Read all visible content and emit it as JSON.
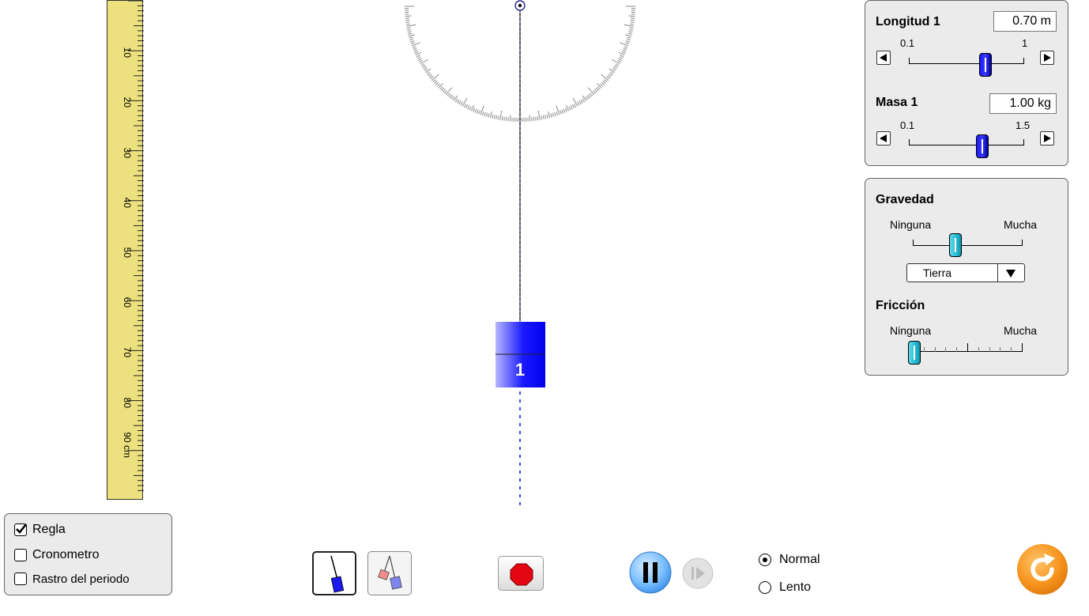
{
  "ruler": {
    "ticks": [
      "10",
      "20",
      "30",
      "40",
      "50",
      "60",
      "70",
      "80",
      "90 cm"
    ]
  },
  "pendulum": {
    "mass_label": "1"
  },
  "panel_length_mass": {
    "length_label": "Longitud 1",
    "length_value": "0.70 m",
    "length_min": "0.1",
    "length_max": "1",
    "length_fraction": 0.67,
    "mass_label": "Masa 1",
    "mass_value": "1.00 kg",
    "mass_min": "0.1",
    "mass_max": "1.5",
    "mass_fraction": 0.64
  },
  "panel_env": {
    "gravity_label": "Gravedad",
    "gravity_low": "Ninguna",
    "gravity_high": "Mucha",
    "gravity_fraction": 0.39,
    "planet_selected": "Tierra",
    "friction_label": "Fricción",
    "friction_low": "Ninguna",
    "friction_high": "Mucha",
    "friction_fraction": 0.0
  },
  "options": {
    "ruler_label": "Regla",
    "ruler_checked": true,
    "stopwatch_label": "Cronometro",
    "stopwatch_checked": false,
    "trace_label": "Rastro del periodo",
    "trace_checked": false
  },
  "speed": {
    "normal_label": "Normal",
    "slow_label": "Lento",
    "selected": "Normal"
  },
  "colors": {
    "mass_blue": "#0000ee",
    "ruler_yellow": "#ece17e",
    "slider_cyan": "#2cc0d8",
    "play_blue": "#5ab0ff",
    "reset_orange": "#f7941d",
    "stop_red": "#e30613"
  }
}
